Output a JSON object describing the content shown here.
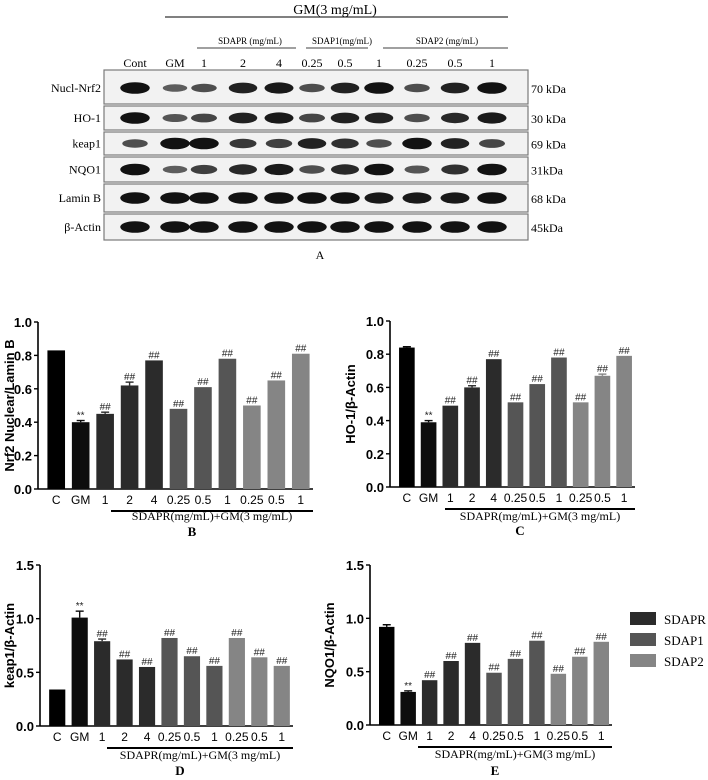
{
  "blot": {
    "treatment_header": "GM(3 mg/mL)",
    "groups": [
      {
        "label": "SDAPR (mg/mL)"
      },
      {
        "label": "SDAP1(mg/mL)"
      },
      {
        "label": "SDAP2 (mg/mL)"
      }
    ],
    "lanes": [
      "Cont",
      "GM",
      "1",
      "2",
      "4",
      "0.25",
      "0.5",
      "1",
      "0.25",
      "0.5",
      "1"
    ],
    "rows": [
      {
        "label": "Nucl-Nrf2",
        "size": "70 kDa",
        "intensity": [
          0.95,
          0.45,
          0.55,
          0.85,
          0.9,
          0.55,
          0.85,
          0.95,
          0.55,
          0.85,
          0.95
        ]
      },
      {
        "label": "HO-1",
        "size": "30 kDa",
        "intensity": [
          0.95,
          0.5,
          0.6,
          0.85,
          0.9,
          0.6,
          0.85,
          0.85,
          0.55,
          0.8,
          0.9
        ]
      },
      {
        "label": "keap1",
        "size": "69 kDa",
        "intensity": [
          0.55,
          0.95,
          0.95,
          0.7,
          0.65,
          0.85,
          0.75,
          0.55,
          0.95,
          0.85,
          0.6
        ]
      },
      {
        "label": "NQO1",
        "size": "31kDa",
        "intensity": [
          0.95,
          0.45,
          0.65,
          0.8,
          0.9,
          0.55,
          0.8,
          0.95,
          0.5,
          0.75,
          0.95
        ]
      },
      {
        "label": "Lamin B",
        "size": "68 kDa",
        "intensity": [
          0.95,
          0.95,
          0.95,
          0.95,
          0.95,
          0.95,
          0.95,
          0.9,
          0.9,
          0.9,
          0.95
        ]
      },
      {
        "label": "β-Actin",
        "size": "45kDa",
        "intensity": [
          0.95,
          0.95,
          0.95,
          0.95,
          0.95,
          0.95,
          0.95,
          0.95,
          0.95,
          0.95,
          0.95
        ]
      }
    ],
    "panel_label": "A"
  },
  "legend": [
    {
      "label": "SDAPR",
      "color": "#2b2b2b"
    },
    {
      "label": "SDAP1",
      "color": "#555555"
    },
    {
      "label": "SDAP2",
      "color": "#858585"
    }
  ],
  "chart_data": [
    {
      "type": "bar",
      "panel": "B",
      "title": "",
      "ylabel": "Nrf2 Nuclear/Lamin B",
      "xlabel": "SDAPR(mg/mL)+GM(3 mg/mL)",
      "categories": [
        "C",
        "GM",
        "1",
        "2",
        "4",
        "0.25",
        "0.5",
        "1",
        "0.25",
        "0.5",
        "1"
      ],
      "values": [
        0.83,
        0.4,
        0.45,
        0.62,
        0.77,
        0.48,
        0.61,
        0.78,
        0.5,
        0.65,
        0.81
      ],
      "errors": [
        0.0,
        0.01,
        0.01,
        0.02,
        0.0,
        0.0,
        0.0,
        0.0,
        0.0,
        0.0,
        0.0
      ],
      "annotations": [
        "",
        "**",
        "##",
        "##",
        "##",
        "##",
        "##",
        "##",
        "##",
        "##",
        "##"
      ],
      "yticks": [
        "0.0",
        "0.2",
        "0.4",
        "0.6",
        "0.8",
        "1.0"
      ],
      "ylim": [
        0,
        1.0
      ],
      "grid": false
    },
    {
      "type": "bar",
      "panel": "C",
      "title": "",
      "ylabel": "HO-1/β-Actin",
      "xlabel": "SDAPR(mg/mL)+GM(3 mg/mL)",
      "categories": [
        "C",
        "GM",
        "1",
        "2",
        "4",
        "0.25",
        "0.5",
        "1",
        "0.25",
        "0.5",
        "1"
      ],
      "values": [
        0.84,
        0.39,
        0.49,
        0.6,
        0.77,
        0.51,
        0.62,
        0.78,
        0.51,
        0.67,
        0.79
      ],
      "errors": [
        0.005,
        0.01,
        0.0,
        0.01,
        0.0,
        0.0,
        0.0,
        0.0,
        0.0,
        0.01,
        0.0
      ],
      "annotations": [
        "",
        "**",
        "##",
        "##",
        "##",
        "##",
        "##",
        "##",
        "##",
        "##",
        "##"
      ],
      "yticks": [
        "0.0",
        "0.2",
        "0.4",
        "0.6",
        "0.8",
        "1.0"
      ],
      "ylim": [
        0,
        1.0
      ],
      "grid": false
    },
    {
      "type": "bar",
      "panel": "D",
      "title": "",
      "ylabel": "keap1/β-Actin",
      "xlabel": "SDAPR(mg/mL)+GM(3 mg/mL)",
      "categories": [
        "C",
        "GM",
        "1",
        "2",
        "4",
        "0.25",
        "0.5",
        "1",
        "0.25",
        "0.5",
        "1"
      ],
      "values": [
        0.34,
        1.01,
        0.79,
        0.62,
        0.55,
        0.82,
        0.65,
        0.56,
        0.82,
        0.64,
        0.56
      ],
      "errors": [
        0.0,
        0.06,
        0.02,
        0.0,
        0.0,
        0.0,
        0.0,
        0.0,
        0.0,
        0.0,
        0.0
      ],
      "annotations": [
        "",
        "**",
        "##",
        "##",
        "##",
        "##",
        "##",
        "##",
        "##",
        "##",
        "##"
      ],
      "yticks": [
        "0.0",
        "0.5",
        "1.0",
        "1.5"
      ],
      "ylim": [
        0,
        1.5
      ],
      "grid": false
    },
    {
      "type": "bar",
      "panel": "E",
      "title": "",
      "ylabel": "NQO1/β-Actin",
      "xlabel": "SDAPR(mg/mL)+GM(3 mg/mL)",
      "categories": [
        "C",
        "GM",
        "1",
        "2",
        "4",
        "0.25",
        "0.5",
        "1",
        "0.25",
        "0.5",
        "1"
      ],
      "values": [
        0.92,
        0.31,
        0.42,
        0.6,
        0.77,
        0.49,
        0.62,
        0.79,
        0.48,
        0.64,
        0.78
      ],
      "errors": [
        0.02,
        0.01,
        0.0,
        0.0,
        0.0,
        0.0,
        0.0,
        0.0,
        0.0,
        0.0,
        0.0
      ],
      "annotations": [
        "",
        "**",
        "##",
        "##",
        "##",
        "##",
        "##",
        "##",
        "##",
        "##",
        "##"
      ],
      "yticks": [
        "0.0",
        "0.5",
        "1.0",
        "1.5"
      ],
      "ylim": [
        0,
        1.5
      ],
      "grid": false,
      "legend_position": "right"
    }
  ],
  "bar_colors": [
    "#000000",
    "#0d0d0d",
    "#2b2b2b",
    "#2b2b2b",
    "#2b2b2b",
    "#555555",
    "#555555",
    "#555555",
    "#858585",
    "#858585",
    "#858585"
  ]
}
